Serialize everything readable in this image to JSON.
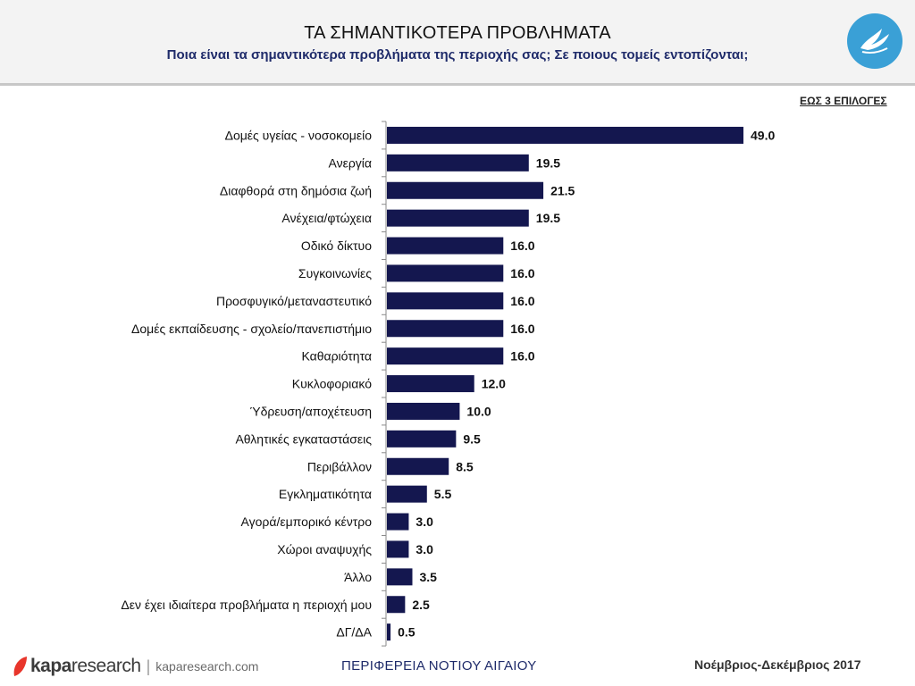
{
  "header": {
    "title": "ΤΑ ΣΗΜΑΝΤΙΚΟΤΕΡΑ ΠΡΟΒΛΗΜΑΤΑ",
    "subtitle": "Ποια είναι τα σημαντικότερα προβλήματα της περιοχής σας; Σε ποιους τομείς εντοπίζονται;",
    "logo_icon": "dove-icon"
  },
  "note": "ΕΩΣ 3 ΕΠΙΛΟΓΕΣ",
  "colors": {
    "bar": "#14174f",
    "axis": "#8a8a8a",
    "logo": "#3aa0d6",
    "brand_accent": "#e8352b"
  },
  "chart_data": {
    "type": "bar",
    "orientation": "horizontal",
    "title": "ΤΑ ΣΗΜΑΝΤΙΚΟΤΕΡΑ ΠΡΟΒΛΗΜΑΤΑ",
    "categories": [
      "Δομές υγείας - νοσοκομείο",
      "Ανεργία",
      "Διαφθορά στη δημόσια ζωή",
      "Ανέχεια/φτώχεια",
      "Οδικό δίκτυο",
      "Συγκοινωνίες",
      "Προσφυγικό/μεταναστευτικό",
      "Δομές εκπαίδευσης - σχολείο/πανεπιστήμιο",
      "Καθαριότητα",
      "Κυκλοφοριακό",
      "Ύδρευση/αποχέτευση",
      "Αθλητικές εγκαταστάσεις",
      "Περιβάλλον",
      "Εγκληματικότητα",
      "Αγορά/εμπορικό κέντρο",
      "Χώροι αναψυχής",
      "Άλλο",
      "Δεν έχει ιδιαίτερα προβλήματα η περιοχή μου",
      "ΔΓ/ΔΑ"
    ],
    "values": [
      49.0,
      19.5,
      21.5,
      19.5,
      16.0,
      16.0,
      16.0,
      16.0,
      16.0,
      12.0,
      10.0,
      9.5,
      8.5,
      5.5,
      3.0,
      3.0,
      3.5,
      2.5,
      0.5
    ],
    "value_labels": [
      "49.0",
      "19.5",
      "21.5",
      "19.5",
      "16.0",
      "16.0",
      "16.0",
      "16.0",
      "16.0",
      "12.0",
      "10.0",
      "9.5",
      "8.5",
      "5.5",
      "3.0",
      "3.0",
      "3.5",
      "2.5",
      "0.5"
    ],
    "xlim": [
      0,
      50
    ],
    "grid": false,
    "legend": "none"
  },
  "footer": {
    "brand_kapa": "kapa",
    "brand_research": "research",
    "brand_sep": "|",
    "brand_url": "kaparesearch.com",
    "region": "ΠΕΡΙΦΕΡΕΙΑ ΝΟΤΙΟΥ ΑΙΓΑΙΟΥ",
    "date": "Νοέμβριος-Δεκέμβριος 2017"
  }
}
